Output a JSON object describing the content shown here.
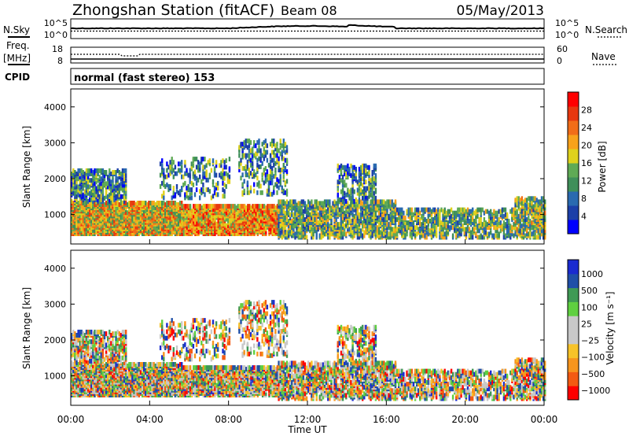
{
  "header": {
    "title": "Zhongshan Station (fitACF)",
    "beam": "Beam 08",
    "date": "05/May/2013"
  },
  "meta_panels": {
    "nsky_label": "N.Sky",
    "nsearch_label": "N.Search",
    "noise_ticks": [
      "10^5",
      "10^0"
    ],
    "freq_label": "Freq.",
    "freq_unit": "[MHz]",
    "freq_ticks": [
      "18",
      "8"
    ],
    "nave_label": "Nave",
    "nave_ticks": [
      "60",
      "0"
    ],
    "cpid_label": "CPID",
    "cpid_text": "normal (fast stereo) 153"
  },
  "colors": {
    "power_scale": [
      "#0000ff",
      "#1c3fa8",
      "#2a6ab0",
      "#3f8f5a",
      "#5faa55",
      "#dfd21c",
      "#f8a21b",
      "#f16d18",
      "#e8380f",
      "#ff0000"
    ],
    "velocity_scale": [
      "#ff0000",
      "#f35a12",
      "#f7951d",
      "#f7c328",
      "#c8c8c8",
      "#c8c8c8",
      "#5fd040",
      "#3f9a55",
      "#1f4fa8",
      "#1a2bd0"
    ]
  },
  "chart_data": [
    {
      "type": "heatmap",
      "name": "power",
      "ylabel": "Slant Range [km]",
      "ylim": [
        180,
        4500
      ],
      "yticks": [
        1000,
        2000,
        3000,
        4000
      ],
      "xlim": [
        0,
        24
      ],
      "colorbar": {
        "label": "Power [dB]",
        "range": [
          0,
          32
        ],
        "ticks": [
          4,
          8,
          12,
          16,
          20,
          24,
          28
        ]
      }
    },
    {
      "type": "heatmap",
      "name": "velocity",
      "ylabel": "Slant Range [km]",
      "ylim": [
        180,
        4500
      ],
      "yticks": [
        1000,
        2000,
        3000,
        4000
      ],
      "xlim": [
        0,
        24
      ],
      "xticks": [
        "00:00",
        "04:00",
        "08:00",
        "12:00",
        "16:00",
        "20:00",
        "00:00"
      ],
      "xlabel": "Time UT",
      "colorbar": {
        "label": "Velocity [m s⁻¹]",
        "ticks": [
          "1000",
          "500",
          "100",
          "25",
          "−25",
          "−100",
          "−500",
          "−1000"
        ]
      }
    }
  ]
}
